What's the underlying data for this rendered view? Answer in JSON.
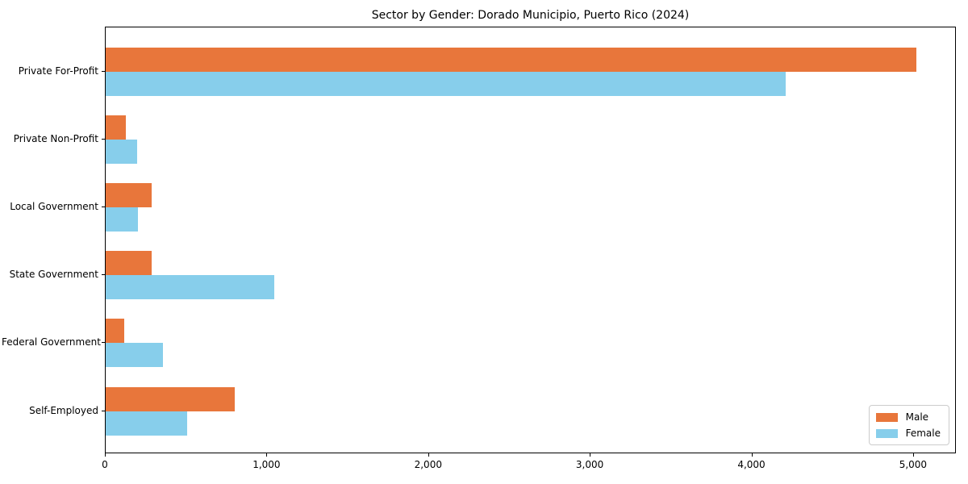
{
  "title": "Sector by Gender: Dorado Municipio, Puerto Rico (2024)",
  "chart_data": {
    "type": "bar",
    "orientation": "horizontal",
    "title": "Sector by Gender: Dorado Municipio, Puerto Rico (2024)",
    "xlabel": "",
    "ylabel": "",
    "categories": [
      "Private For-Profit",
      "Private Non-Profit",
      "Local Government",
      "State Government",
      "Federal Government",
      "Self-Employed"
    ],
    "series": [
      {
        "name": "Male",
        "color": "#e8763b",
        "values": [
          5015,
          125,
          285,
          285,
          115,
          800
        ]
      },
      {
        "name": "Female",
        "color": "#87ceeb",
        "values": [
          4205,
          195,
          200,
          1045,
          355,
          505
        ]
      }
    ],
    "xlim": [
      0,
      5265
    ],
    "xticks": [
      0,
      1000,
      2000,
      3000,
      4000,
      5000
    ],
    "xtick_labels": [
      "0",
      "1,000",
      "2,000",
      "3,000",
      "4,000",
      "5,000"
    ],
    "grid": false,
    "legend_position": "lower right",
    "background_color": "#ffffff",
    "spine_color": "#000000"
  }
}
